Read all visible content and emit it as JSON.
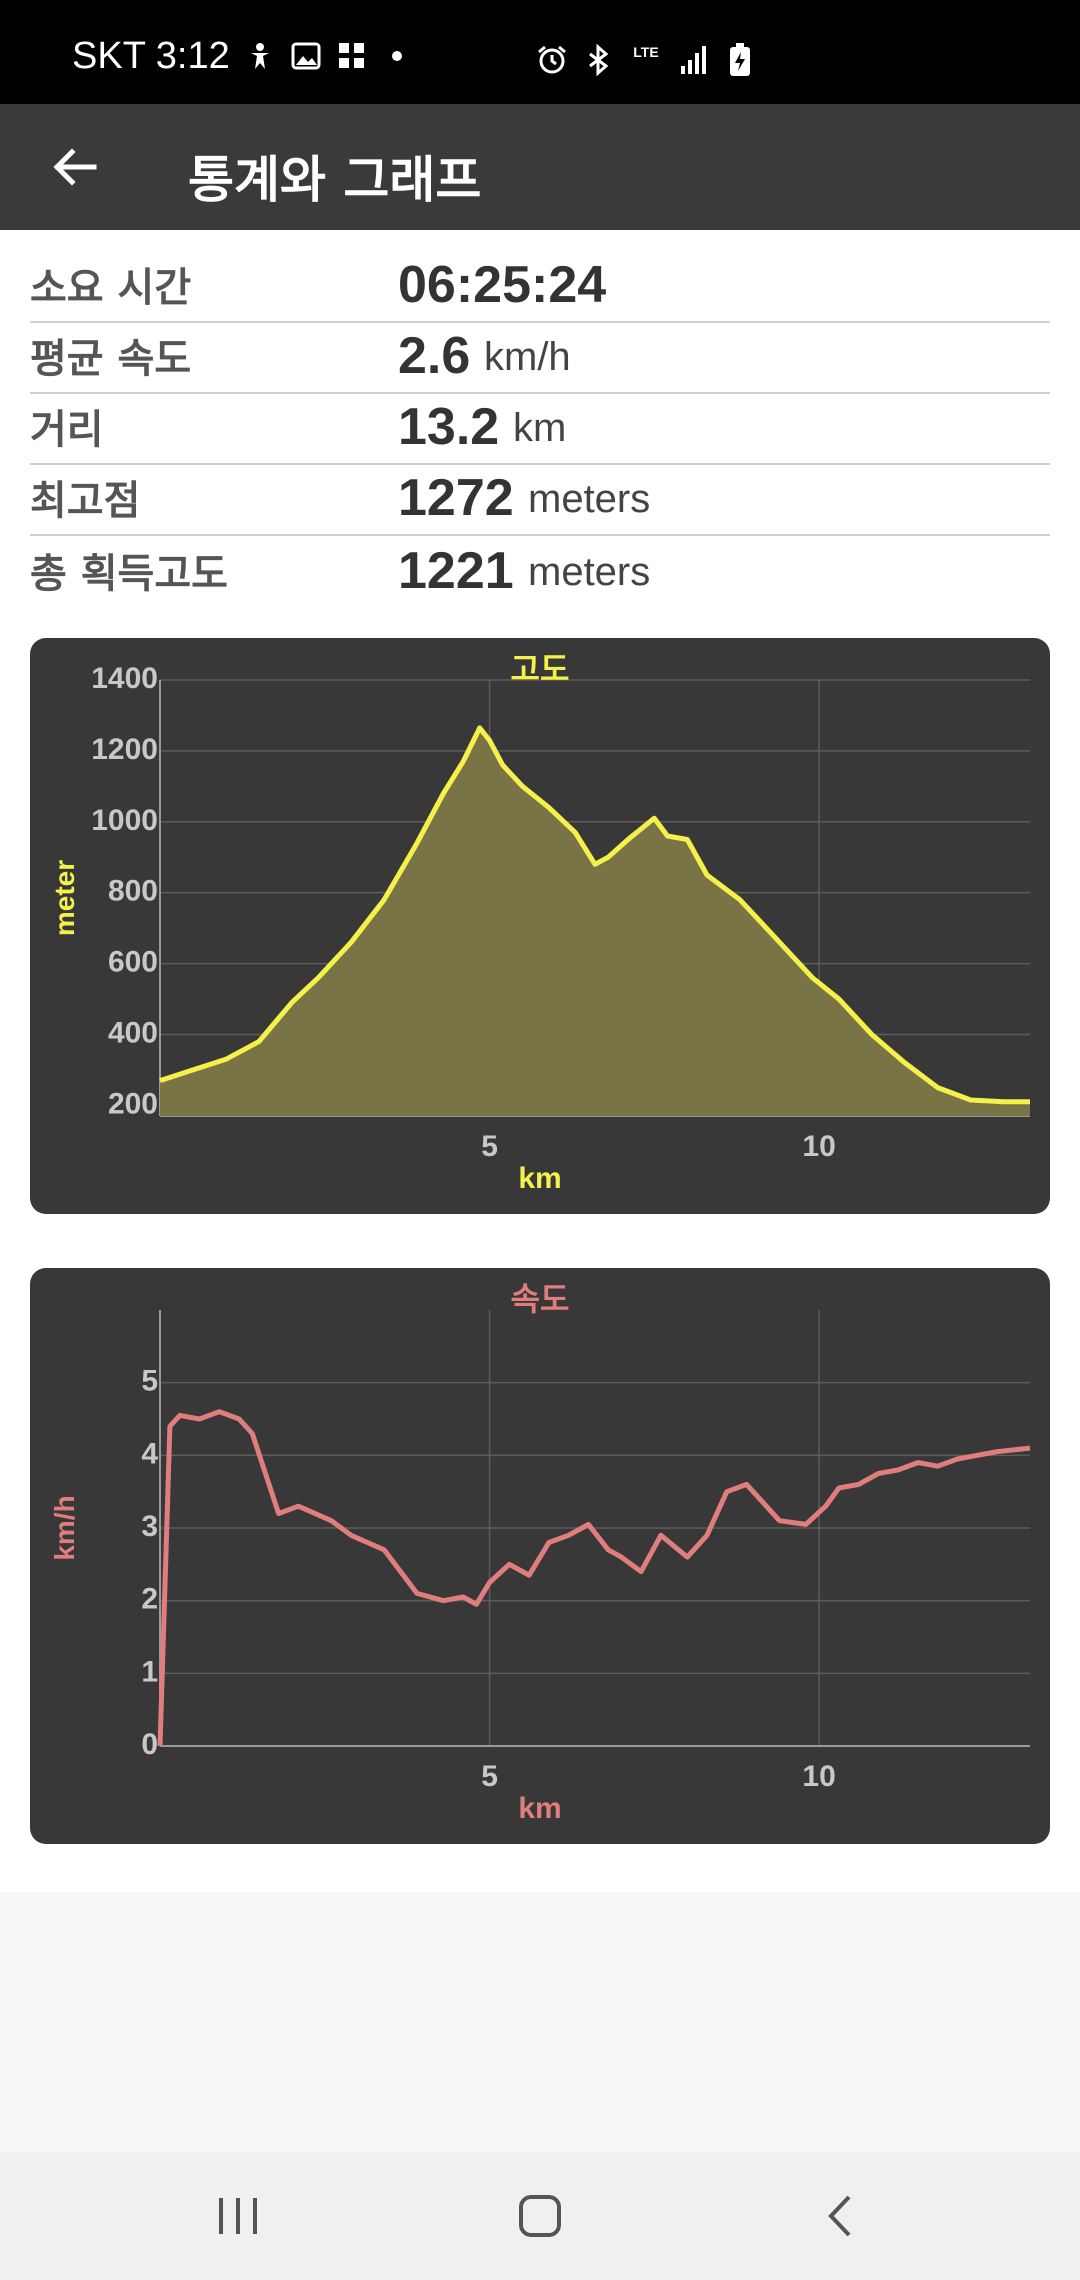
{
  "status_bar": {
    "carrier_time": "SKT 3:12",
    "icons_left": [
      "accessibility-icon",
      "gallery-icon",
      "apps-grid-icon",
      "dot-icon"
    ],
    "icons_right": [
      "alarm-icon",
      "bluetooth-icon",
      "lte-icon",
      "signal-icon",
      "battery-charging-icon"
    ],
    "lte_label": "LTE"
  },
  "app_bar": {
    "title": "통계와 그래프",
    "back_icon": "arrow-left-icon"
  },
  "stats": [
    {
      "label": "소요 시간",
      "value": "06:25:24",
      "unit": ""
    },
    {
      "label": "평균 속도",
      "value": "2.6",
      "unit": "km/h"
    },
    {
      "label": "거리",
      "value": "13.2",
      "unit": "km"
    },
    {
      "label": "최고점",
      "value": "1272",
      "unit": "meters"
    },
    {
      "label": "총 획득고도",
      "value": "1221",
      "unit": "meters"
    }
  ],
  "chart_data": [
    {
      "type": "area",
      "title": "고도",
      "xlabel": "km",
      "ylabel": "meter",
      "color": "#f5f04a",
      "fill": "#787446",
      "xlim": [
        0,
        13.2
      ],
      "ylim": [
        170,
        1400
      ],
      "yticks": [
        200,
        400,
        600,
        800,
        1000,
        1200,
        1400
      ],
      "xticks": [
        5,
        10
      ],
      "grid": true,
      "x": [
        0,
        0.5,
        1.0,
        1.5,
        2.0,
        2.4,
        2.9,
        3.4,
        3.9,
        4.3,
        4.6,
        4.85,
        5.0,
        5.2,
        5.5,
        5.9,
        6.3,
        6.6,
        6.8,
        7.1,
        7.5,
        7.7,
        8.0,
        8.3,
        8.8,
        9.3,
        9.9,
        10.3,
        10.8,
        11.3,
        11.8,
        12.3,
        12.8,
        13.2
      ],
      "y": [
        270,
        300,
        330,
        380,
        490,
        560,
        660,
        780,
        940,
        1080,
        1170,
        1265,
        1230,
        1160,
        1100,
        1040,
        970,
        880,
        900,
        950,
        1010,
        960,
        950,
        850,
        780,
        680,
        560,
        500,
        400,
        320,
        250,
        215,
        210,
        210
      ]
    },
    {
      "type": "line",
      "title": "속도",
      "xlabel": "km",
      "ylabel": "km/h",
      "color": "#e07d7d",
      "xlim": [
        0,
        13.2
      ],
      "ylim": [
        0,
        6
      ],
      "yticks": [
        0,
        1,
        2,
        3,
        4,
        5
      ],
      "xticks": [
        5,
        10
      ],
      "grid": true,
      "x": [
        0,
        0.15,
        0.3,
        0.6,
        0.9,
        1.2,
        1.4,
        1.8,
        2.1,
        2.6,
        2.9,
        3.4,
        3.9,
        4.3,
        4.6,
        4.8,
        5.0,
        5.3,
        5.6,
        5.9,
        6.2,
        6.5,
        6.8,
        7.0,
        7.3,
        7.6,
        8.0,
        8.3,
        8.6,
        8.9,
        9.1,
        9.4,
        9.8,
        10.1,
        10.3,
        10.6,
        10.9,
        11.2,
        11.5,
        11.8,
        12.1,
        12.4,
        12.7,
        13.2
      ],
      "y": [
        0,
        4.4,
        4.55,
        4.5,
        4.6,
        4.5,
        4.3,
        3.2,
        3.3,
        3.1,
        2.9,
        2.7,
        2.1,
        2.0,
        2.05,
        1.95,
        2.25,
        2.5,
        2.35,
        2.8,
        2.9,
        3.05,
        2.7,
        2.6,
        2.4,
        2.9,
        2.6,
        2.9,
        3.5,
        3.6,
        3.4,
        3.1,
        3.05,
        3.3,
        3.55,
        3.6,
        3.75,
        3.8,
        3.9,
        3.85,
        3.95,
        4.0,
        4.05,
        4.1
      ]
    }
  ],
  "nav_bar": {
    "recent_icon": "recent-apps-icon",
    "home_icon": "home-icon",
    "back_icon": "nav-back-icon"
  }
}
